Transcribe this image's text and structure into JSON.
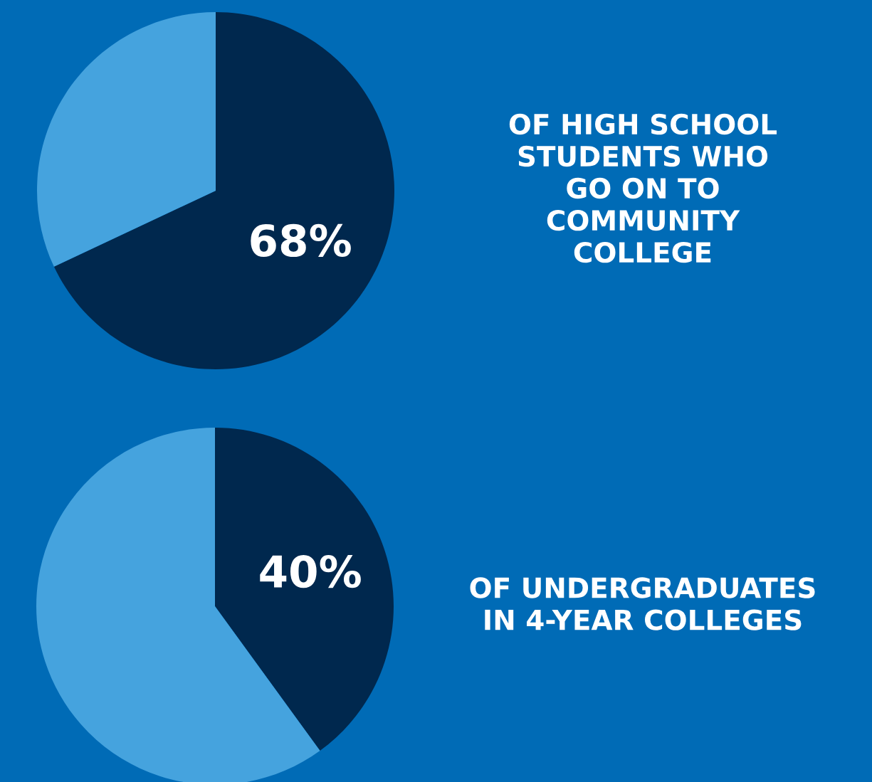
{
  "chart_data": [
    {
      "type": "pie",
      "title": "OF HIGH SCHOOL\nSTUDENTS WHO\nGO ON TO\nCOMMUNITY\nCOLLEGE",
      "categories": [
        null,
        null
      ],
      "values": [
        68,
        32
      ],
      "colors": [
        "#00284e",
        "#45a3de"
      ],
      "value_labels": [
        "68%",
        null
      ]
    },
    {
      "type": "pie",
      "title": "OF UNDERGRADUATES\nIN 4-YEAR COLLEGES",
      "categories": [
        null,
        null
      ],
      "values": [
        40,
        60
      ],
      "colors": [
        "#00284e",
        "#45a3de"
      ],
      "value_labels": [
        "40%",
        null
      ]
    }
  ]
}
